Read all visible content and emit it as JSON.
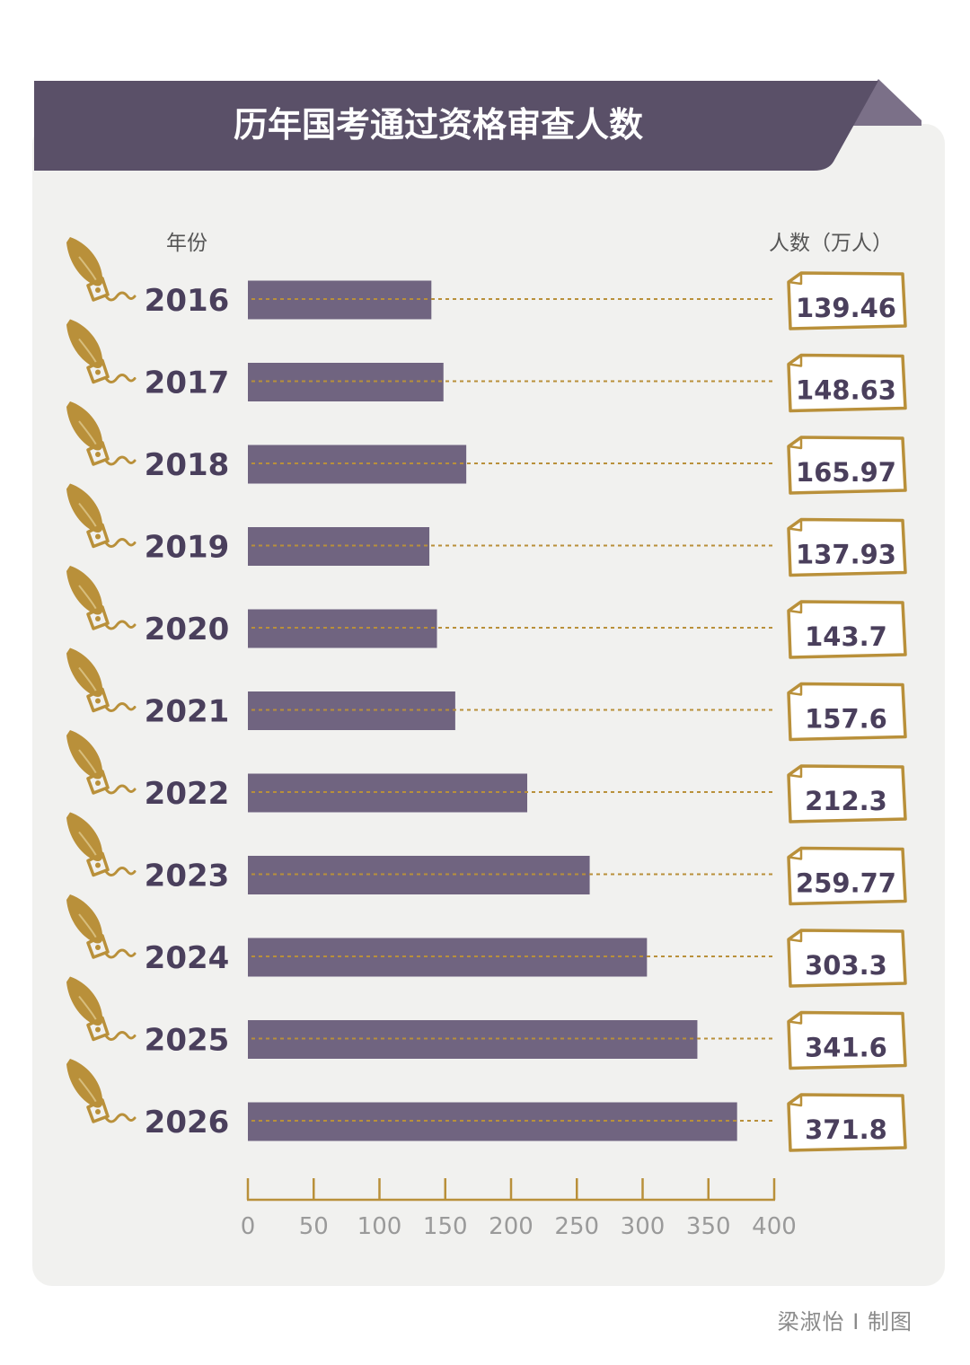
{
  "title": "历年国考通过资格审查人数",
  "credit": "梁淑怡 I 制图",
  "colors": {
    "panel": "#f1f1ef",
    "banner": "#5a5068",
    "banner_fold": "#7b7088",
    "bar": "#706480",
    "gold": "#b9903a",
    "year_text": "#4a3f5c",
    "value_text": "#4a3f5c",
    "axis_text": "#9a9a9a",
    "label_text": "#555555"
  },
  "icon": "fountain-pen-nib-icon",
  "chart_data": {
    "type": "bar",
    "orientation": "horizontal",
    "category_label": "年份",
    "value_label": "人数（万人）",
    "categories": [
      "2016",
      "2017",
      "2018",
      "2019",
      "2020",
      "2021",
      "2022",
      "2023",
      "2024",
      "2025",
      "2026"
    ],
    "values": [
      139.46,
      148.63,
      165.97,
      137.93,
      143.7,
      157.6,
      212.3,
      259.77,
      303.3,
      341.6,
      371.8
    ],
    "value_labels": [
      "139.46",
      "148.63",
      "165.97",
      "137.93",
      "143.7",
      "157.6",
      "212.3",
      "259.77",
      "303.3",
      "341.6",
      "371.8"
    ],
    "xlim": [
      0,
      400
    ],
    "ticks": [
      0,
      50,
      100,
      150,
      200,
      250,
      300,
      350,
      400
    ],
    "grid": false,
    "legend": "none"
  }
}
